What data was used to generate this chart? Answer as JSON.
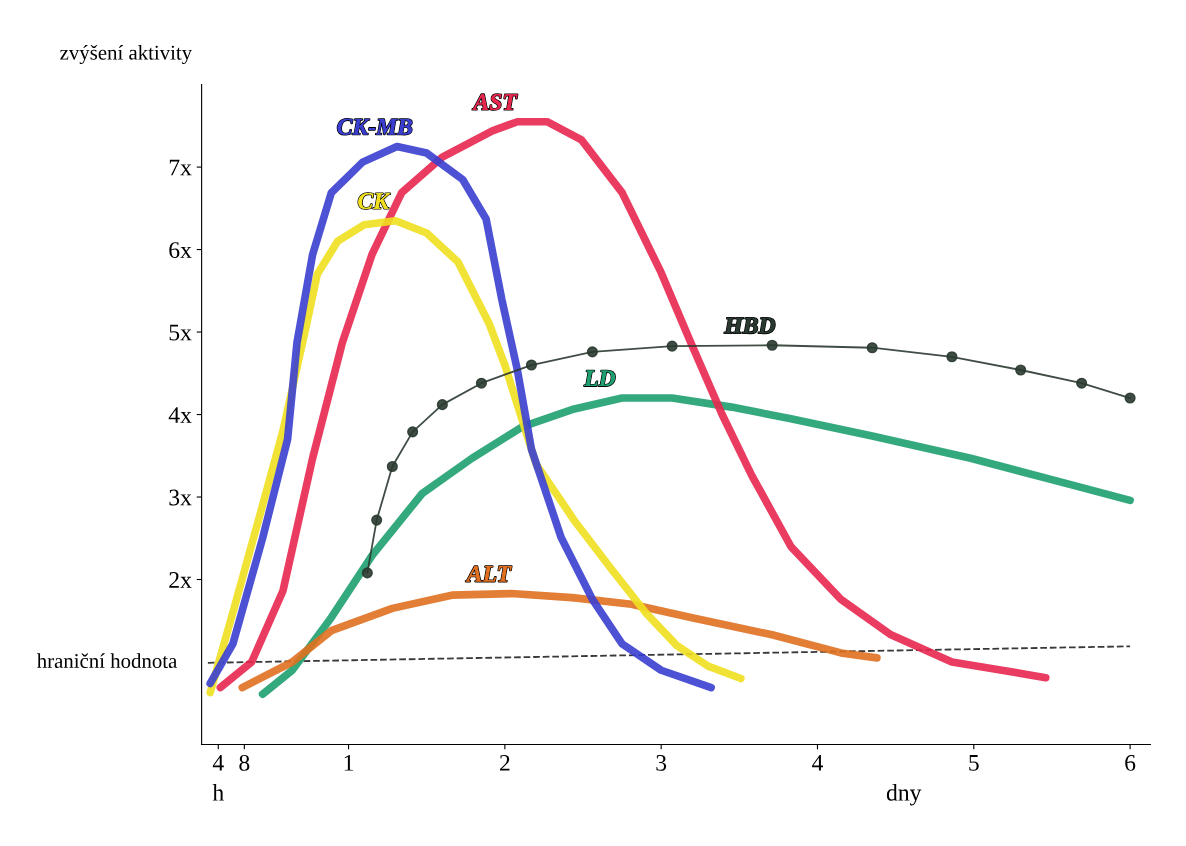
{
  "chart_data": {
    "type": "line",
    "ylabel": "zvýšení aktivity",
    "xlabel": "dny",
    "x2label": "h",
    "x2lim": [
      1.44,
      147.12
    ],
    "x2ticks": [
      4,
      8
    ],
    "xlim": [
      0.06,
      6.13
    ],
    "ylim": [
      0,
      8
    ],
    "xticks": [
      1,
      2,
      3,
      4,
      5,
      6
    ],
    "yticks": [
      {
        "value": 2,
        "label": "2x"
      },
      {
        "value": 3,
        "label": "3x"
      },
      {
        "value": 4,
        "label": "4x"
      },
      {
        "value": 5,
        "label": "5x"
      },
      {
        "value": 6,
        "label": "6x"
      },
      {
        "value": 7,
        "label": "7x"
      }
    ],
    "grid": false,
    "legend": false,
    "series": [
      {
        "name": "hraniční hodnota",
        "color": "#222222",
        "line_style": "dashed",
        "marker": "none",
        "x": [
          0.1,
          6.0
        ],
        "values": [
          0.99,
          1.19
        ]
      },
      {
        "name": "LD",
        "color": "#1fa070",
        "line_style": "solid",
        "marker": "none",
        "x": [
          0.45,
          0.64,
          0.89,
          1.15,
          1.47,
          1.79,
          2.11,
          2.43,
          2.75,
          3.07,
          3.45,
          3.83,
          4.35,
          4.98,
          5.62,
          6.0
        ],
        "values": [
          0.61,
          0.9,
          1.54,
          2.29,
          3.04,
          3.47,
          3.85,
          4.06,
          4.2,
          4.2,
          4.09,
          3.95,
          3.74,
          3.47,
          3.15,
          2.96
        ]
      },
      {
        "name": "ALT",
        "color": "#e07020",
        "line_style": "solid",
        "marker": "none",
        "x": [
          0.32,
          0.64,
          0.89,
          1.28,
          1.66,
          2.04,
          2.43,
          2.81,
          3.19,
          3.71,
          4.15,
          4.38
        ],
        "values": [
          0.69,
          1.0,
          1.38,
          1.65,
          1.81,
          1.83,
          1.78,
          1.7,
          1.54,
          1.33,
          1.11,
          1.05
        ]
      },
      {
        "name": "AST",
        "color": "#e8274f",
        "line_style": "solid",
        "marker": "none",
        "x": [
          0.18,
          0.38,
          0.58,
          0.77,
          0.96,
          1.15,
          1.34,
          1.6,
          1.92,
          2.08,
          2.27,
          2.49,
          2.75,
          3.0,
          3.19,
          3.39,
          3.58,
          3.83,
          4.15,
          4.47,
          4.86,
          5.18,
          5.46
        ],
        "values": [
          0.69,
          1.0,
          1.86,
          3.47,
          4.87,
          5.94,
          6.69,
          7.12,
          7.44,
          7.55,
          7.55,
          7.33,
          6.69,
          5.72,
          4.87,
          4.0,
          3.26,
          2.4,
          1.76,
          1.33,
          1.0,
          0.9,
          0.81
        ]
      },
      {
        "name": "CK",
        "color": "#f0e020",
        "line_style": "solid",
        "marker": "none",
        "x": [
          0.115,
          0.26,
          0.45,
          0.58,
          0.73,
          0.8,
          0.93,
          1.1,
          1.3,
          1.5,
          1.7,
          1.9,
          2.0,
          2.2,
          2.45,
          2.68,
          2.9,
          3.1,
          3.3,
          3.51
        ],
        "values": [
          0.63,
          1.6,
          2.9,
          3.8,
          5.08,
          5.7,
          6.1,
          6.3,
          6.35,
          6.2,
          5.85,
          5.1,
          4.6,
          3.4,
          2.7,
          2.13,
          1.6,
          1.2,
          0.95,
          0.8
        ]
      },
      {
        "name": "CK-MB",
        "color": "#3a3fd0",
        "line_style": "solid",
        "marker": "none",
        "x": [
          0.115,
          0.26,
          0.45,
          0.61,
          0.67,
          0.77,
          0.89,
          1.09,
          1.31,
          1.5,
          1.73,
          1.88,
          1.98,
          2.08,
          2.17,
          2.36,
          2.56,
          2.75,
          3.0,
          3.32
        ],
        "values": [
          0.74,
          1.22,
          2.5,
          3.7,
          4.87,
          5.94,
          6.69,
          7.06,
          7.25,
          7.17,
          6.85,
          6.37,
          5.4,
          4.54,
          3.58,
          2.51,
          1.76,
          1.22,
          0.9,
          0.69
        ]
      },
      {
        "name": "HBD",
        "color": "#2a3a30",
        "line_style": "solid",
        "marker": "circle",
        "x": [
          1.12,
          1.18,
          1.28,
          1.41,
          1.6,
          1.85,
          2.17,
          2.56,
          3.07,
          3.71,
          4.35,
          4.86,
          5.3,
          5.69,
          6.0
        ],
        "values": [
          2.08,
          2.72,
          3.37,
          3.79,
          4.12,
          4.38,
          4.6,
          4.76,
          4.83,
          4.84,
          4.81,
          4.7,
          4.54,
          4.38,
          4.2
        ]
      }
    ]
  }
}
